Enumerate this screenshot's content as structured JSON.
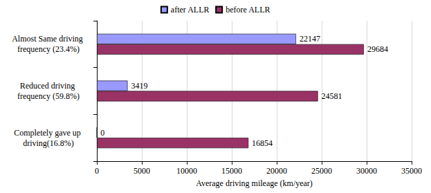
{
  "chart_data": {
    "type": "bar",
    "orientation": "horizontal",
    "categories": [
      "Completely gave up driving(16.8%)",
      "Reduced driving frequency (59.8%)",
      "Almost Same driving frequency (23.4%)"
    ],
    "series": [
      {
        "name": "after ALLR",
        "color": "#9999ff",
        "values": [
          0,
          3419,
          22147
        ]
      },
      {
        "name": "before ALLR",
        "color": "#993366",
        "values": [
          16854,
          24581,
          29684
        ]
      }
    ],
    "xlabel": "Average driving mileage (km/year)",
    "xlim": [
      0,
      35000
    ],
    "xticks": [
      0,
      5000,
      10000,
      15000,
      20000,
      25000,
      30000,
      35000
    ],
    "grid": true,
    "legend": "top",
    "data_labels": true
  }
}
